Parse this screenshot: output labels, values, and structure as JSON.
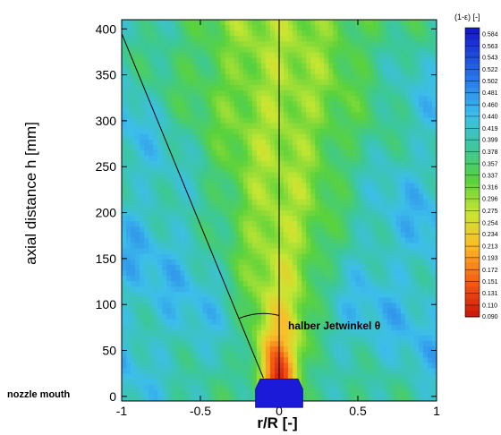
{
  "chart_data": {
    "type": "heatmap",
    "title": "",
    "xlabel": "r/R [-]",
    "ylabel": "axial distance h [mm]",
    "xlim": [
      -1,
      1
    ],
    "ylim": [
      -5,
      410
    ],
    "x_ticks": [
      {
        "value": -1,
        "label": "-1"
      },
      {
        "value": -0.5,
        "label": "-0.5"
      },
      {
        "value": 0,
        "label": "0"
      },
      {
        "value": 0.5,
        "label": "0.5"
      },
      {
        "value": 1,
        "label": "1"
      }
    ],
    "y_ticks": [
      {
        "value": 0,
        "label": "0"
      },
      {
        "value": 50,
        "label": "50"
      },
      {
        "value": 100,
        "label": "100"
      },
      {
        "value": 150,
        "label": "150"
      },
      {
        "value": 200,
        "label": "200"
      },
      {
        "value": 250,
        "label": "250"
      },
      {
        "value": 300,
        "label": "300"
      },
      {
        "value": 350,
        "label": "350"
      },
      {
        "value": 400,
        "label": "400"
      }
    ],
    "colorbar": {
      "title": "(1-ε) [-]",
      "min": 0.0896,
      "max": 0.5947,
      "levels": [
        "0.584",
        "0.563",
        "0.543",
        "0.522",
        "0.502",
        "0.481",
        "0.460",
        "0.440",
        "0.419",
        "0.399",
        "0.378",
        "0.357",
        "0.337",
        "0.316",
        "0.296",
        "0.275",
        "0.254",
        "0.234",
        "0.213",
        "0.193",
        "0.172",
        "0.151",
        "0.131",
        "0.110",
        "0.090"
      ]
    },
    "annotations": {
      "jet_angle": "halber Jetwinkel θ",
      "nozzle": "nozzle mouth"
    },
    "centerline_x": 0,
    "jet_boundary_line": {
      "from": [
        -0.1,
        20
      ],
      "to": [
        -1,
        395
      ]
    },
    "nozzle_shape": [
      [
        -0.15,
        -12
      ],
      [
        -0.15,
        8
      ],
      [
        -0.12,
        19
      ],
      [
        0.12,
        19
      ],
      [
        0.15,
        8
      ],
      [
        0.15,
        -12
      ]
    ],
    "nozzle_color": "#1a1ad8"
  }
}
